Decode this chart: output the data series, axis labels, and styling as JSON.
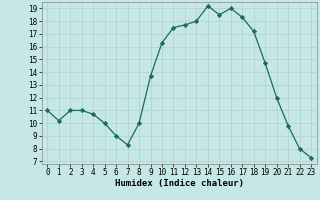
{
  "x": [
    0,
    1,
    2,
    3,
    4,
    5,
    6,
    7,
    8,
    9,
    10,
    11,
    12,
    13,
    14,
    15,
    16,
    17,
    18,
    19,
    20,
    21,
    22,
    23
  ],
  "y": [
    11,
    10.2,
    11,
    11,
    10.7,
    10,
    9,
    8.3,
    10,
    13.7,
    16.3,
    17.5,
    17.7,
    18,
    19.2,
    18.5,
    19,
    18.3,
    17.2,
    14.7,
    12,
    9.8,
    8,
    7.3
  ],
  "line_color": "#1a6b5a",
  "marker_color": "#1a6b5a",
  "bg_color": "#c5e8e6",
  "grid_color": "#b0d0ce",
  "xlabel": "Humidex (Indice chaleur)",
  "xlim": [
    -0.5,
    23.5
  ],
  "ylim": [
    6.8,
    19.5
  ],
  "yticks": [
    7,
    8,
    9,
    10,
    11,
    12,
    13,
    14,
    15,
    16,
    17,
    18,
    19
  ],
  "xticks": [
    0,
    1,
    2,
    3,
    4,
    5,
    6,
    7,
    8,
    9,
    10,
    11,
    12,
    13,
    14,
    15,
    16,
    17,
    18,
    19,
    20,
    21,
    22,
    23
  ],
  "label_fontsize": 6.5,
  "tick_fontsize": 5.5
}
